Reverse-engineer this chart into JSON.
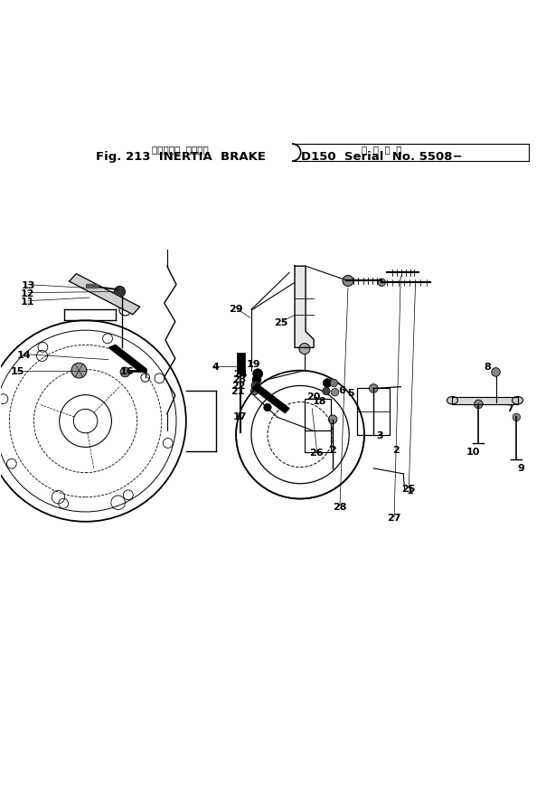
{
  "title_line1": "イナーシャ  ブレーキ",
  "title_line2": "Fig. 213  INERTIA  BRAKE",
  "title_right1": "適  用  号  機",
  "title_right2": "D150  Serial  No. 5508−",
  "bg_color": "#ffffff",
  "line_color": "#000000",
  "fig_width": 6.04,
  "fig_height": 8.79,
  "dpi": 100
}
